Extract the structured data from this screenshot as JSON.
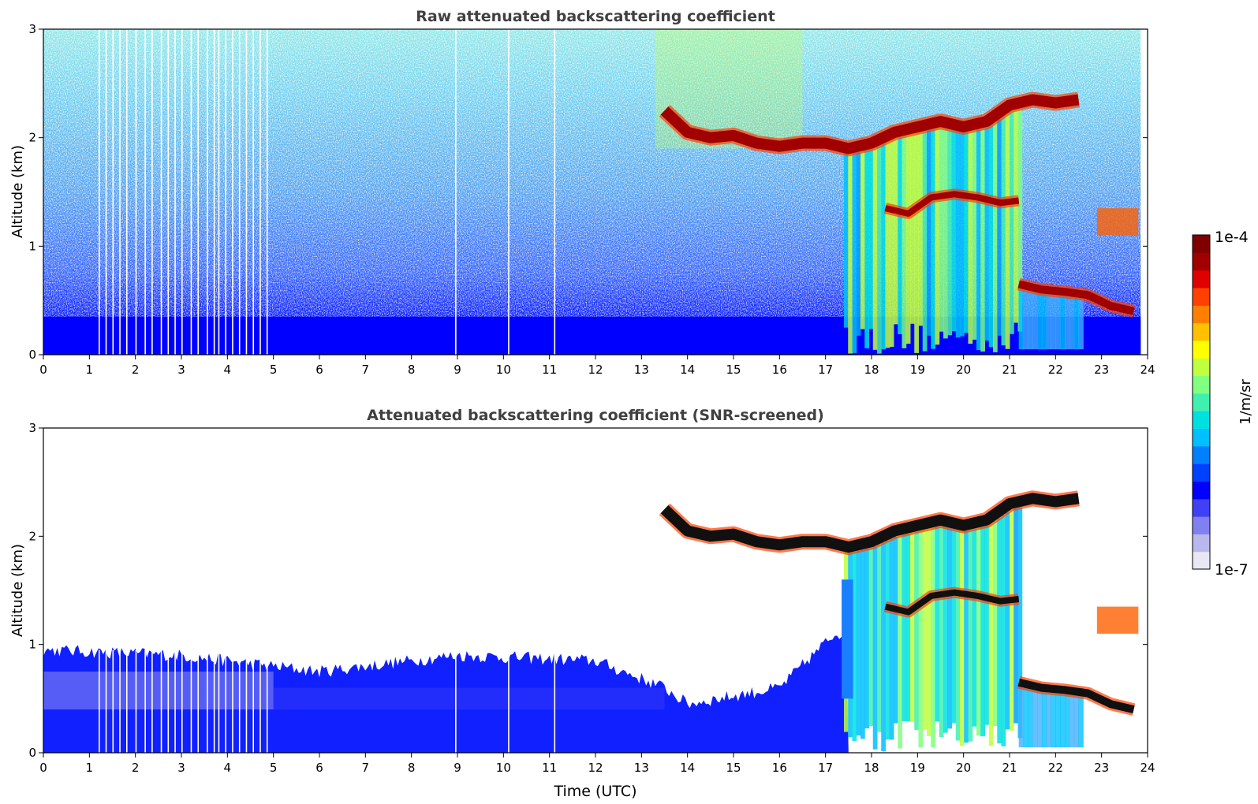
{
  "chart_data": [
    {
      "type": "heatmap",
      "title": "Raw attenuated backscattering coefficient",
      "xlabel": "",
      "ylabel": "Altitude (km)",
      "xlim": [
        0,
        24
      ],
      "ylim": [
        0,
        3
      ],
      "xticks": [
        "0",
        "1",
        "2",
        "3",
        "4",
        "5",
        "6",
        "7",
        "8",
        "9",
        "10",
        "11",
        "12",
        "13",
        "14",
        "15",
        "16",
        "17",
        "18",
        "19",
        "20",
        "21",
        "22",
        "23",
        "24"
      ],
      "yticks": [
        "0",
        "1",
        "2",
        "3"
      ],
      "features": {
        "boundary_layer_top_km": 0.35,
        "dropout_columns_hours": [
          1.2,
          1.35,
          1.5,
          1.65,
          1.8,
          2.0,
          2.2,
          2.35,
          2.55,
          2.7,
          2.85,
          3.0,
          3.2,
          3.35,
          3.55,
          3.7,
          3.8,
          3.95,
          4.1,
          4.25,
          4.4,
          4.55,
          4.7,
          4.85,
          8.95,
          10.1,
          11.1
        ],
        "cloud_layer": [
          {
            "t": 13.5,
            "alt": 2.25
          },
          {
            "t": 14.0,
            "alt": 2.05
          },
          {
            "t": 14.5,
            "alt": 2.0
          },
          {
            "t": 15.0,
            "alt": 2.02
          },
          {
            "t": 15.5,
            "alt": 1.95
          },
          {
            "t": 16.0,
            "alt": 1.92
          },
          {
            "t": 16.5,
            "alt": 1.95
          },
          {
            "t": 17.0,
            "alt": 1.95
          },
          {
            "t": 17.5,
            "alt": 1.9
          },
          {
            "t": 18.0,
            "alt": 1.95
          },
          {
            "t": 18.5,
            "alt": 2.05
          },
          {
            "t": 19.0,
            "alt": 2.1
          },
          {
            "t": 19.5,
            "alt": 2.15
          },
          {
            "t": 20.0,
            "alt": 2.1
          },
          {
            "t": 20.5,
            "alt": 2.15
          },
          {
            "t": 21.0,
            "alt": 2.3
          },
          {
            "t": 21.5,
            "alt": 2.35
          },
          {
            "t": 22.0,
            "alt": 2.32
          },
          {
            "t": 22.5,
            "alt": 2.35
          }
        ],
        "lower_cloud_layer": [
          {
            "t": 18.3,
            "alt": 1.35
          },
          {
            "t": 18.8,
            "alt": 1.3
          },
          {
            "t": 19.3,
            "alt": 1.45
          },
          {
            "t": 19.8,
            "alt": 1.48
          },
          {
            "t": 20.3,
            "alt": 1.45
          },
          {
            "t": 20.8,
            "alt": 1.4
          },
          {
            "t": 21.2,
            "alt": 1.42
          }
        ],
        "low_cloud_layer": [
          {
            "t": 21.2,
            "alt": 0.65
          },
          {
            "t": 21.7,
            "alt": 0.6
          },
          {
            "t": 22.2,
            "alt": 0.58
          },
          {
            "t": 22.7,
            "alt": 0.55
          },
          {
            "t": 23.2,
            "alt": 0.45
          },
          {
            "t": 23.7,
            "alt": 0.4
          }
        ],
        "precip_streaks_range_hours": [
          17.4,
          21.2
        ]
      }
    },
    {
      "type": "heatmap",
      "title": "Attenuated backscattering coefficient (SNR-screened)",
      "xlabel": "Time (UTC)",
      "ylabel": "Altitude (km)",
      "xlim": [
        0,
        24
      ],
      "ylim": [
        0,
        3
      ],
      "xticks": [
        "0",
        "1",
        "2",
        "3",
        "4",
        "5",
        "6",
        "7",
        "8",
        "9",
        "10",
        "11",
        "12",
        "13",
        "14",
        "15",
        "16",
        "17",
        "18",
        "19",
        "20",
        "21",
        "22",
        "23",
        "24"
      ],
      "yticks": [
        "0",
        "1",
        "2",
        "3"
      ],
      "features": {
        "screened_top_km": [
          {
            "t": 0.0,
            "alt": 0.95
          },
          {
            "t": 3.0,
            "alt": 0.9
          },
          {
            "t": 6.0,
            "alt": 0.75
          },
          {
            "t": 9.0,
            "alt": 0.9
          },
          {
            "t": 12.0,
            "alt": 0.85
          },
          {
            "t": 13.5,
            "alt": 0.6
          },
          {
            "t": 14.0,
            "alt": 0.45
          },
          {
            "t": 16.0,
            "alt": 0.6
          },
          {
            "t": 17.2,
            "alt": 1.1
          }
        ]
      }
    }
  ],
  "colorbar": {
    "max_label": "1e-4",
    "min_label": "1e-7",
    "unit_label": "1/m/sr",
    "colors": [
      "#e8e8f5",
      "#b8b8ef",
      "#8080f0",
      "#4040f5",
      "#0000ff",
      "#0040ff",
      "#0080ff",
      "#00c0ff",
      "#00e0e0",
      "#40f0b0",
      "#80ff80",
      "#c0ff40",
      "#ffff00",
      "#ffc000",
      "#ff8000",
      "#ff4000",
      "#e00000",
      "#a00000",
      "#800000"
    ]
  },
  "style": {
    "axis_color": "#000000",
    "title_color": "#404040",
    "background": "#ffffff"
  }
}
